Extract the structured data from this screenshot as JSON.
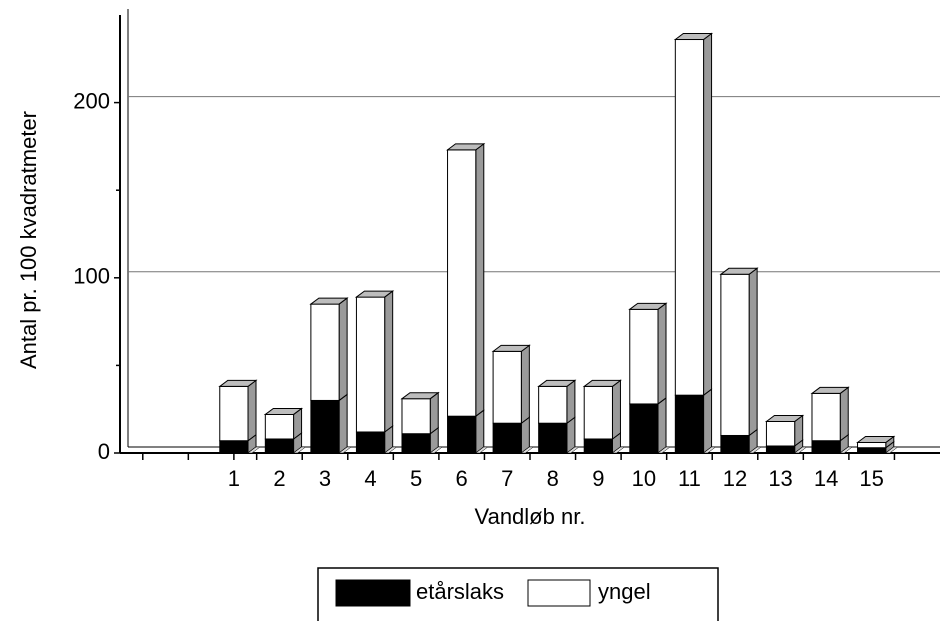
{
  "chart_data": {
    "type": "stacked_bar_3d",
    "x_label": "Vandløb nr.",
    "y_label": "Antal pr. 100 kvadratmeter",
    "categories": [
      "1",
      "2",
      "3",
      "4",
      "5",
      "6",
      "7",
      "8",
      "9",
      "10",
      "11",
      "12",
      "13",
      "14",
      "15"
    ],
    "series": [
      {
        "name": "etårslaks",
        "color": "#000000",
        "values": [
          7,
          8,
          30,
          12,
          11,
          21,
          17,
          17,
          8,
          28,
          33,
          10,
          4,
          7,
          3
        ]
      },
      {
        "name": "yngel",
        "color": "#ffffff",
        "values": [
          31,
          14,
          55,
          77,
          20,
          152,
          41,
          21,
          30,
          54,
          203,
          92,
          14,
          27,
          3
        ]
      }
    ],
    "ylim": [
      0,
      250
    ],
    "yticks": [
      0,
      100,
      200
    ],
    "minor_yticks": [
      50,
      150
    ],
    "grid": true,
    "legend": "bottom"
  }
}
